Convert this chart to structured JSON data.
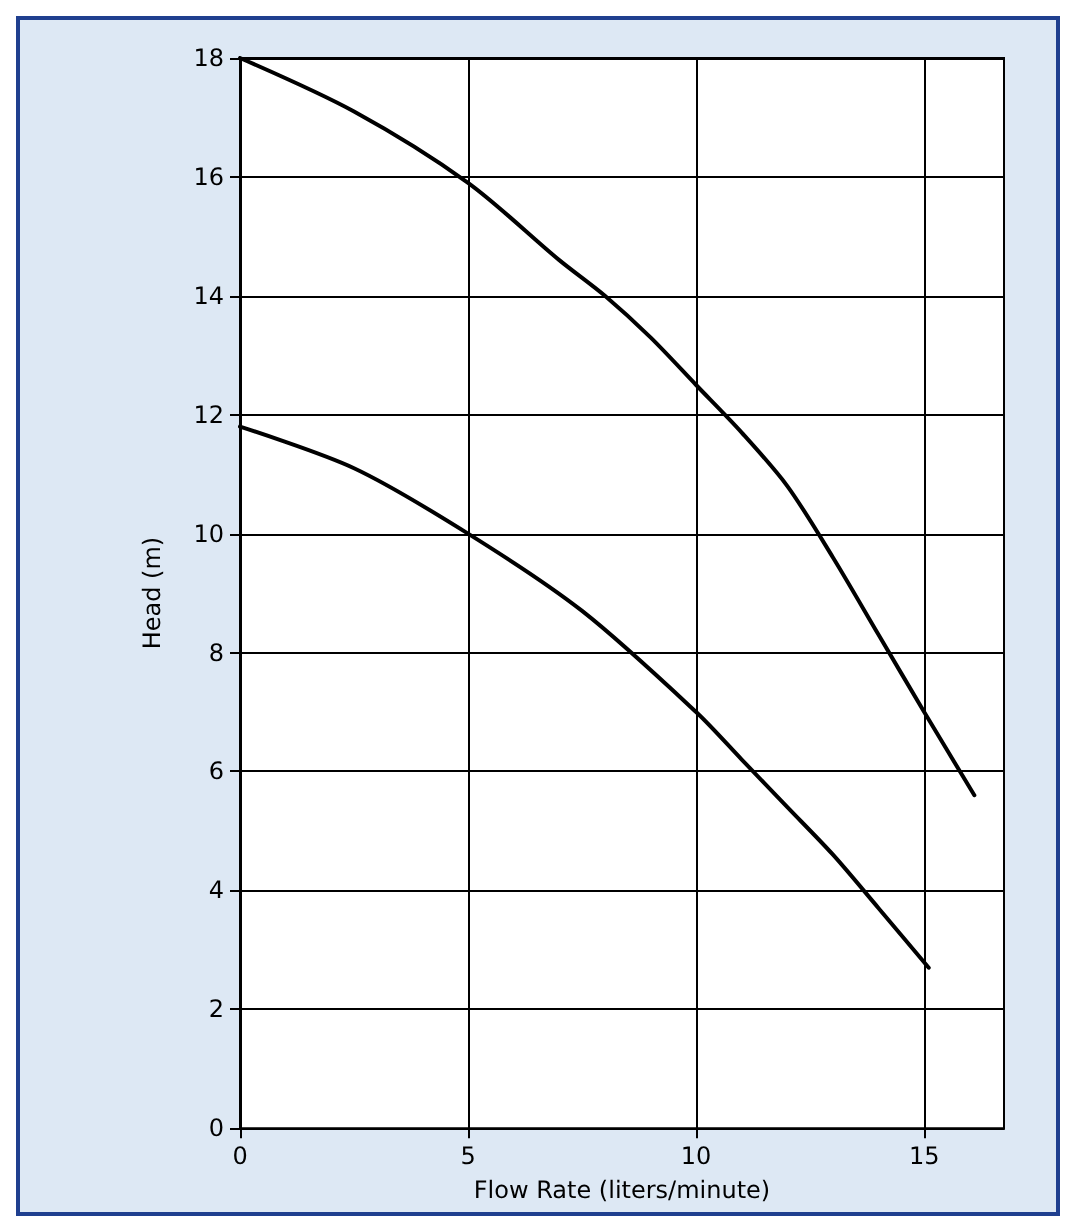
{
  "chart_data": {
    "type": "line",
    "xlabel": "Flow Rate (liters/minute)",
    "ylabel": "Head (m)",
    "xlim": [
      0,
      16.75
    ],
    "ylim": [
      0,
      18
    ],
    "xticks": [
      0,
      5,
      10,
      15
    ],
    "yticks": [
      0,
      2,
      4,
      6,
      8,
      10,
      12,
      14,
      16,
      18
    ],
    "grid": true,
    "marker": "none",
    "line_style": "solid",
    "series": [
      {
        "color": "#000000",
        "x": [
          0,
          2.5,
          5,
          7,
          8,
          9,
          10,
          11,
          12,
          13,
          14,
          15,
          16.1
        ],
        "values": [
          18,
          17.1,
          15.9,
          14.6,
          14,
          13.3,
          12.5,
          11.7,
          10.8,
          9.6,
          8.3,
          7,
          5.6
        ]
      },
      {
        "color": "#000000",
        "x": [
          0,
          2.5,
          5,
          7.5,
          10,
          11,
          12,
          13,
          14,
          15.1
        ],
        "values": [
          11.8,
          11.1,
          10,
          8.7,
          7,
          6.2,
          5.4,
          4.6,
          3.7,
          2.7
        ]
      }
    ]
  }
}
